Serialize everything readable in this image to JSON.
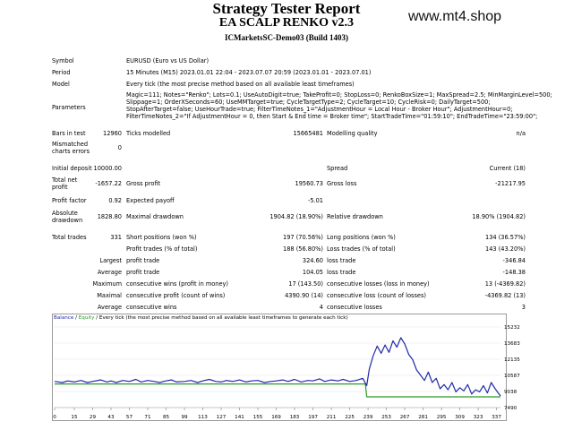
{
  "header": {
    "title": "Strategy Tester Report",
    "subtitle": "EA SCALP RENKO v2.3",
    "server": "ICMarketsSC-Demo03 (Build 1403)",
    "watermark": "www.mt4.shop"
  },
  "info": {
    "symbol_label": "Symbol",
    "symbol_value": "EURUSD (Euro vs US Dollar)",
    "period_label": "Period",
    "period_value": "15 Minutes (M15) 2023.01.01 22:04 - 2023.07.07 20:59 (2023.01.01 - 2023.07.01)",
    "model_label": "Model",
    "model_value": "Every tick (the most precise method based on all available least timeframes)",
    "parameters_label": "Parameters",
    "parameters_lines": [
      "Magic=111; Notes=\"Renko\"; Lots=0.1; UseAutoDigit=true; TakeProfit=0; StopLoss=0; RenkoBoxSize=1; MaxSpread=2.5; MinMarginLevel=500;",
      "Slippage=1; OrderXSeconds=60; UseMMTarget=true; CycleTargetType=2; CycleTarget=10; CycleRisk=0; DailyTarget=500;",
      "StopAfterTarget=false; UseHourTrade=true; FilterTimeNotes_1=\"AdjustmentHour = Local Hour - Broker Hour\"; AdjustmentHour=0;",
      "FilterTimeNotes_2=\"If AdjustmentHour = 0, then Start & End time = Broker time\"; StartTradeTime=\"01:59:10\"; EndTradeTime=\"23:59:00\";"
    ]
  },
  "stats": {
    "bars_label": "Bars in test",
    "bars_value": "12960",
    "ticks_label": "Ticks modelled",
    "ticks_value": "15665481",
    "quality_label": "Modelling quality",
    "quality_value": "n/a",
    "mismatch_label_1": "Mismatched",
    "mismatch_label_2": "charts errors",
    "mismatch_value": "0",
    "deposit_label": "Initial deposit",
    "deposit_value": "10000.00",
    "spread_label": "Spread",
    "spread_value": "Current (18)",
    "netprofit_label_1": "Total net",
    "netprofit_label_2": "profit",
    "netprofit_value": "-1657.22",
    "grossprofit_label": "Gross profit",
    "grossprofit_value": "19560.73",
    "grossloss_label": "Gross loss",
    "grossloss_value": "-21217.95",
    "pf_label": "Profit factor",
    "pf_value": "0.92",
    "ep_label": "Expected payoff",
    "ep_value": "-5.01",
    "absdd_label_1": "Absolute",
    "absdd_label_2": "drawdown",
    "absdd_value": "1828.80",
    "maxdd_label": "Maximal drawdown",
    "maxdd_value": "1904.82 (18.90%)",
    "reldd_label": "Relative drawdown",
    "reldd_value": "18.90% (1904.82)",
    "trades_label": "Total trades",
    "trades_value": "331",
    "short_label": "Short positions (won %)",
    "short_value": "197 (70.56%)",
    "long_label": "Long positions (won %)",
    "long_value": "134 (36.57%)",
    "pt_label": "Profit trades (% of total)",
    "pt_value": "188 (56.80%)",
    "lt_label": "Loss trades (% of total)",
    "lt_value": "143 (43.20%)",
    "largest_label": "Largest",
    "average_label": "Average",
    "maximum_label": "Maximum",
    "maximal_label": "Maximal",
    "lpt_label": "profit trade",
    "lpt_value": "324.60",
    "llt_label": "loss trade",
    "llt_value": "-346.84",
    "apt_label": "profit trade",
    "apt_value": "104.05",
    "alt_label": "loss trade",
    "alt_value": "-148.38",
    "mcw_label": "consecutive wins (profit in money)",
    "mcw_value": "17 (143.50)",
    "mcl_label": "consecutive losses (loss in money)",
    "mcl_value": "13 (-4369.82)",
    "mcp_label": "consecutive profit (count of wins)",
    "mcp_value": "4390.90 (14)",
    "mcls_label": "consecutive loss (count of losses)",
    "mcls_value": "-4369.82 (13)",
    "acw_label": "consecutive wins",
    "acw_value": "4",
    "acl_label": "consecutive losses",
    "acl_value": "3"
  },
  "chart_caption": {
    "balance": "Balance",
    "sep": " / ",
    "equity": "Equity",
    "rest": " / Every tick (the most precise method based on all available least timeframes to generate each tick)"
  },
  "chart_data": {
    "type": "line",
    "y_ticks": [
      15232,
      13683,
      12135,
      10587,
      9038,
      7490
    ],
    "x_ticks": [
      0,
      15,
      29,
      43,
      57,
      71,
      85,
      99,
      113,
      127,
      141,
      155,
      169,
      183,
      197,
      211,
      225,
      239,
      253,
      267,
      281,
      295,
      309,
      323,
      337
    ],
    "xlim": [
      0,
      340
    ],
    "ylim": [
      7490,
      15232
    ],
    "series": [
      {
        "color": "#1f2aa8",
        "x": [
          0,
          6,
          10,
          15,
          20,
          25,
          29,
          35,
          40,
          43,
          47,
          52,
          57,
          62,
          66,
          71,
          76,
          80,
          85,
          89,
          93,
          99,
          104,
          109,
          113,
          118,
          123,
          127,
          131,
          136,
          141,
          146,
          150,
          155,
          160,
          165,
          169,
          174,
          178,
          183,
          188,
          193,
          197,
          202,
          206,
          211,
          216,
          220,
          225,
          230,
          235,
          238,
          240,
          243,
          246,
          249,
          252,
          255,
          258,
          261,
          264,
          267,
          270,
          273,
          276,
          279,
          282,
          285,
          288,
          291,
          294,
          297,
          300,
          303,
          306,
          309,
          312,
          315,
          318,
          321,
          324,
          327,
          330,
          333,
          336,
          340
        ],
        "y": [
          10000,
          9900,
          10050,
          9950,
          10100,
          9900,
          10000,
          10150,
          9950,
          10050,
          9900,
          10100,
          10000,
          10200,
          9950,
          10100,
          10000,
          9900,
          10050,
          10150,
          9950,
          10000,
          10100,
          9900,
          10050,
          10200,
          10000,
          9950,
          10100,
          10000,
          10150,
          9950,
          10050,
          10100,
          9900,
          10000,
          10050,
          10150,
          10000,
          10200,
          9950,
          10100,
          10050,
          10250,
          10000,
          10150,
          10050,
          10200,
          10000,
          10100,
          10300,
          9600,
          11200,
          12500,
          13400,
          12700,
          13500,
          12800,
          13900,
          13300,
          14200,
          13600,
          12600,
          12100,
          11100,
          10600,
          10100,
          10900,
          9900,
          10300,
          9300,
          9700,
          9200,
          9900,
          9000,
          9400,
          9100,
          9700,
          8800,
          9200,
          9000,
          9600,
          8900,
          9900,
          9300,
          8600
        ]
      },
      {
        "color": "#2a9a2a",
        "x": [
          0,
          237,
          238,
          340
        ],
        "y": [
          9760,
          9760,
          8520,
          8520
        ]
      }
    ]
  }
}
